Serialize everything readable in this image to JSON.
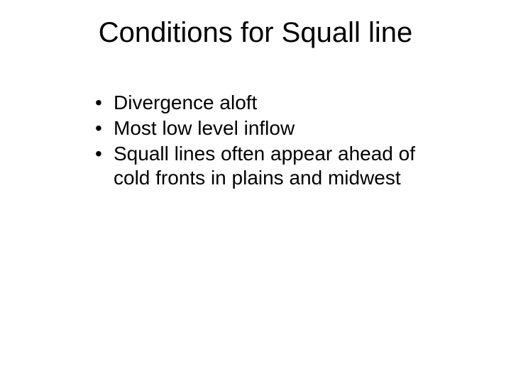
{
  "slide": {
    "title": "Conditions for Squall line",
    "bullets": [
      "Divergence aloft",
      "Most low level inflow",
      "Squall lines often appear ahead of cold fronts in plains and midwest"
    ],
    "background_color": "#ffffff",
    "text_color": "#000000",
    "title_fontsize": 40,
    "body_fontsize": 28,
    "font_family": "Arial"
  }
}
